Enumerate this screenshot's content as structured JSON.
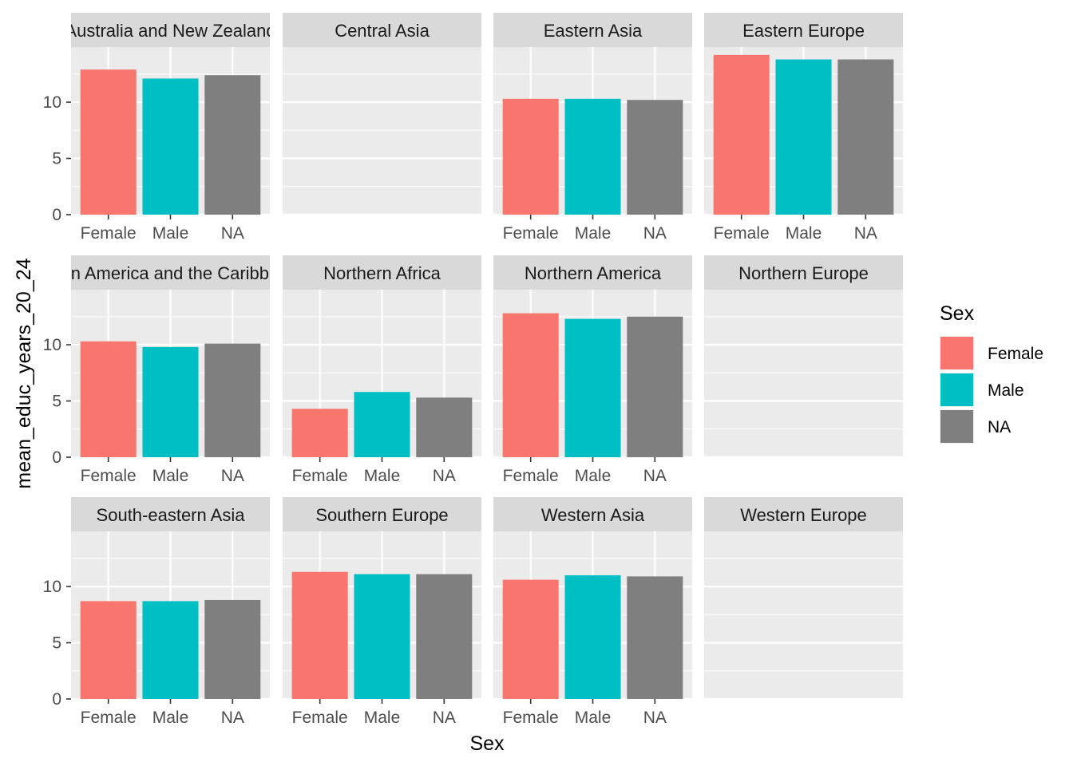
{
  "chart_data": {
    "type": "bar",
    "facet_by": "region",
    "xlabel": "Sex",
    "ylabel": "mean_educ_years_20_24",
    "categories": [
      "Female",
      "Male",
      "NA"
    ],
    "ylim": [
      0,
      14.9
    ],
    "yticks": [
      0,
      5,
      10
    ],
    "grid": true,
    "legend": {
      "title": "Sex",
      "placement": "right",
      "entries": [
        {
          "label": "Female",
          "color": "#F8766D"
        },
        {
          "label": "Male",
          "color": "#00BFC4"
        },
        {
          "label": "NA",
          "color": "#7F7F7F"
        }
      ]
    },
    "panels": [
      {
        "title": "Australia and New Zealand",
        "values": [
          12.9,
          12.1,
          12.4
        ]
      },
      {
        "title": "Central Asia",
        "values": []
      },
      {
        "title": "Eastern Asia",
        "values": [
          10.3,
          10.3,
          10.2
        ]
      },
      {
        "title": "Eastern Europe",
        "values": [
          14.2,
          13.8,
          13.8
        ]
      },
      {
        "title": "Latin America and the Caribbean",
        "values": [
          10.3,
          9.8,
          10.1
        ]
      },
      {
        "title": "Northern Africa",
        "values": [
          4.3,
          5.8,
          5.3
        ]
      },
      {
        "title": "Northern America",
        "values": [
          12.8,
          12.3,
          12.5
        ]
      },
      {
        "title": "Northern Europe",
        "values": []
      },
      {
        "title": "South-eastern Asia",
        "values": [
          8.7,
          8.7,
          8.8
        ]
      },
      {
        "title": "Southern Europe",
        "values": [
          11.3,
          11.1,
          11.1
        ]
      },
      {
        "title": "Western Asia",
        "values": [
          10.6,
          11.0,
          10.9
        ]
      },
      {
        "title": "Western Europe",
        "values": []
      }
    ]
  }
}
